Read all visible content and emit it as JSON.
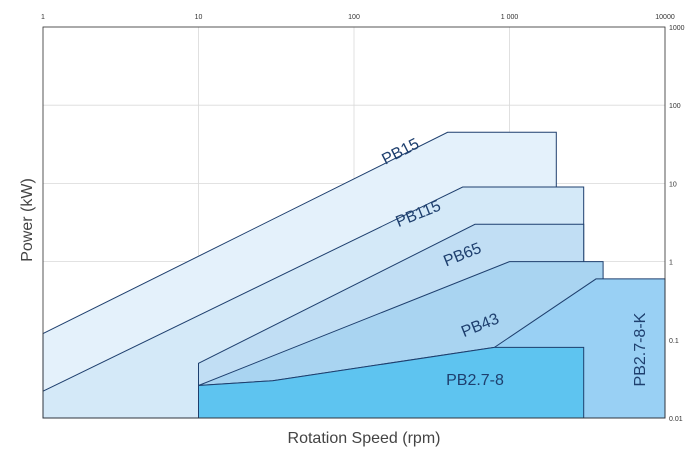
{
  "chart_data": {
    "type": "area",
    "title": "",
    "xlabel": "Rotation Speed (rpm)",
    "ylabel": "Power (kW)",
    "x_scale": "log",
    "y_scale": "log",
    "xlim": [
      1,
      10000
    ],
    "ylim": [
      0.01,
      1000
    ],
    "x_ticks": [
      "1",
      "10",
      "100",
      "1 000",
      "10000"
    ],
    "y_ticks": [
      "1000",
      "100",
      "10",
      "1",
      "0.1",
      "0.01"
    ],
    "grid": true,
    "colors": {
      "outline": "#1e3f6e",
      "grid": "#d9d9d9",
      "PB15": "#e4f1fb",
      "PB115": "#d4e9f8",
      "PB65": "#c1def4",
      "PB43": "#a9d4f1",
      "PB2.7-8-K": "#99d0f4",
      "PB2.7-8": "#5ec4f0"
    },
    "series": [
      {
        "name": "PB15",
        "label_position": [
          200,
          25
        ],
        "label_rotation": -27,
        "polygon": [
          [
            1,
            0.01
          ],
          [
            1,
            0.12
          ],
          [
            400,
            45
          ],
          [
            2000,
            45
          ],
          [
            2000,
            0.01
          ]
        ]
      },
      {
        "name": "PB115",
        "label_position": [
          260,
          4
        ],
        "label_rotation": -22,
        "polygon": [
          [
            1,
            0.01
          ],
          [
            1,
            0.022
          ],
          [
            500,
            9
          ],
          [
            3000,
            9
          ],
          [
            3000,
            0.01
          ]
        ]
      },
      {
        "name": "PB65",
        "label_position": [
          500,
          1.2
        ],
        "label_rotation": -22,
        "polygon": [
          [
            10,
            0.01
          ],
          [
            10,
            0.05
          ],
          [
            600,
            3
          ],
          [
            3000,
            3
          ],
          [
            3000,
            0.01
          ]
        ]
      },
      {
        "name": "PB43",
        "label_position": [
          650,
          0.15
        ],
        "label_rotation": -22,
        "polygon": [
          [
            10,
            0.01
          ],
          [
            10,
            0.026
          ],
          [
            1000,
            1
          ],
          [
            4000,
            1
          ],
          [
            4000,
            0.01
          ]
        ]
      },
      {
        "name": "PB2.7-8-K",
        "label_position": [
          7000,
          0.075
        ],
        "label_rotation": -90,
        "polygon": [
          [
            10,
            0.01
          ],
          [
            10,
            0.026
          ],
          [
            30,
            0.03
          ],
          [
            800,
            0.08
          ],
          [
            3600,
            0.6
          ],
          [
            10000,
            0.6
          ],
          [
            10000,
            0.01
          ]
        ]
      },
      {
        "name": "PB2.7-8",
        "label_position": [
          600,
          0.03
        ],
        "label_rotation": 0,
        "polygon": [
          [
            10,
            0.01
          ],
          [
            10,
            0.026
          ],
          [
            30,
            0.03
          ],
          [
            800,
            0.08
          ],
          [
            3000,
            0.08
          ],
          [
            3000,
            0.01
          ]
        ]
      }
    ]
  }
}
